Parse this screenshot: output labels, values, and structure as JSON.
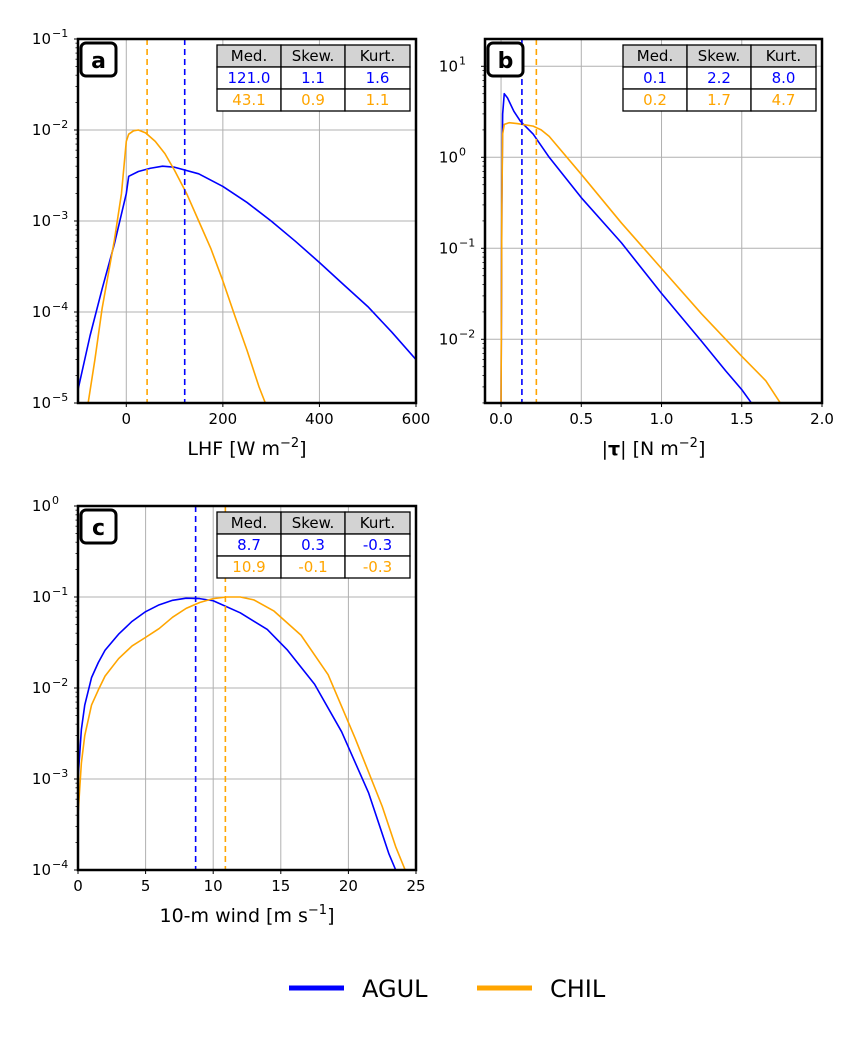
{
  "colors": {
    "agul": "#0000ff",
    "chil": "#ffa500",
    "grid": "#b0b0b0",
    "table_header_bg": "#d3d3d3"
  },
  "legend": {
    "items": [
      {
        "label": "AGUL",
        "color": "#0000ff"
      },
      {
        "label": "CHIL",
        "color": "#ffa500"
      }
    ]
  },
  "table_headers": [
    "Med.",
    "Skew.",
    "Kurt."
  ],
  "chart_data": [
    {
      "id": "a",
      "panel_label": "a",
      "type": "line",
      "xlabel": "LHF [W m$^{-2}$]",
      "xlabel_parts": {
        "main": "LHF [W m",
        "sup": "−2",
        "end": "]",
        "bold": ""
      },
      "yscale": "log",
      "xlim": [
        -100,
        600
      ],
      "ylim_exp": [
        -5,
        -1
      ],
      "xticks": [
        0,
        200,
        400,
        600
      ],
      "xtick_labels": [
        "0",
        "200",
        "400",
        "600"
      ],
      "ytick_exps": [
        -5,
        -4,
        -3,
        -2,
        -1
      ],
      "vlines": [
        {
          "series": "AGUL",
          "x": 121.0
        },
        {
          "series": "CHIL",
          "x": 43.1
        }
      ],
      "table": [
        {
          "series": "AGUL",
          "values": [
            "121.0",
            "1.1",
            "1.6"
          ]
        },
        {
          "series": "CHIL",
          "values": [
            "43.1",
            "0.9",
            "1.1"
          ]
        }
      ],
      "series": [
        {
          "name": "AGUL",
          "points": [
            [
              -100,
              1.4e-05
            ],
            [
              -75,
              5.5e-05
            ],
            [
              -50,
              0.00018
            ],
            [
              -25,
              0.00055
            ],
            [
              0,
              0.002
            ],
            [
              5,
              0.0031
            ],
            [
              25,
              0.0035
            ],
            [
              50,
              0.0038
            ],
            [
              75,
              0.004
            ],
            [
              100,
              0.0039
            ],
            [
              150,
              0.0033
            ],
            [
              200,
              0.0024
            ],
            [
              250,
              0.0016
            ],
            [
              300,
              0.001
            ],
            [
              350,
              0.0006
            ],
            [
              400,
              0.00035
            ],
            [
              450,
              0.0002
            ],
            [
              500,
              0.000115
            ],
            [
              550,
              6e-05
            ],
            [
              600,
              3e-05
            ]
          ]
        },
        {
          "name": "CHIL",
          "points": [
            [
              -79,
              1e-05
            ],
            [
              -65,
              3e-05
            ],
            [
              -50,
              0.00011
            ],
            [
              -25,
              0.0006
            ],
            [
              -10,
              0.002
            ],
            [
              0,
              0.0075
            ],
            [
              5,
              0.009
            ],
            [
              15,
              0.0098
            ],
            [
              25,
              0.01
            ],
            [
              40,
              0.0093
            ],
            [
              60,
              0.0075
            ],
            [
              80,
              0.0055
            ],
            [
              100,
              0.0036
            ],
            [
              125,
              0.002
            ],
            [
              150,
              0.001
            ],
            [
              175,
              0.0005
            ],
            [
              200,
              0.00022
            ],
            [
              225,
              9e-05
            ],
            [
              250,
              3.8e-05
            ],
            [
              275,
              1.5e-05
            ],
            [
              288,
              1e-05
            ]
          ]
        }
      ]
    },
    {
      "id": "b",
      "panel_label": "b",
      "type": "line",
      "xlabel": "|τ| [N m$^{-2}$]",
      "xlabel_parts": {
        "main": "| [N m",
        "sup": "−2",
        "end": "]",
        "bold": "τ"
      },
      "yscale": "log",
      "xlim": [
        -0.1,
        2.0
      ],
      "ylim_exp": [
        -2.7,
        1.3
      ],
      "xticks": [
        0.0,
        0.5,
        1.0,
        1.5,
        2.0
      ],
      "xtick_labels": [
        "0.0",
        "0.5",
        "1.0",
        "1.5",
        "2.0"
      ],
      "ytick_exps": [
        -2,
        -1,
        0,
        1
      ],
      "vlines": [
        {
          "series": "AGUL",
          "x": 0.13
        },
        {
          "series": "CHIL",
          "x": 0.22
        }
      ],
      "table": [
        {
          "series": "AGUL",
          "values": [
            "0.1",
            "2.2",
            "8.0"
          ]
        },
        {
          "series": "CHIL",
          "values": [
            "0.2",
            "1.7",
            "4.7"
          ]
        }
      ],
      "series": [
        {
          "name": "AGUL",
          "points": [
            [
              0.0,
              0.002
            ],
            [
              0.005,
              0.3
            ],
            [
              0.01,
              3.0
            ],
            [
              0.02,
              5.0
            ],
            [
              0.04,
              4.5
            ],
            [
              0.08,
              3.2
            ],
            [
              0.12,
              2.5
            ],
            [
              0.2,
              1.8
            ],
            [
              0.3,
              1.0
            ],
            [
              0.5,
              0.36
            ],
            [
              0.75,
              0.115
            ],
            [
              1.0,
              0.032
            ],
            [
              1.25,
              0.0095
            ],
            [
              1.4,
              0.0045
            ],
            [
              1.5,
              0.0028
            ],
            [
              1.56,
              0.002
            ]
          ]
        },
        {
          "name": "CHIL",
          "points": [
            [
              0.0,
              0.002
            ],
            [
              0.005,
              0.3
            ],
            [
              0.01,
              1.8
            ],
            [
              0.02,
              2.3
            ],
            [
              0.05,
              2.4
            ],
            [
              0.1,
              2.35
            ],
            [
              0.2,
              2.2
            ],
            [
              0.25,
              2.0
            ],
            [
              0.3,
              1.7
            ],
            [
              0.5,
              0.65
            ],
            [
              0.75,
              0.19
            ],
            [
              1.0,
              0.06
            ],
            [
              1.25,
              0.019
            ],
            [
              1.5,
              0.0065
            ],
            [
              1.65,
              0.0035
            ],
            [
              1.74,
              0.002
            ]
          ]
        }
      ]
    },
    {
      "id": "c",
      "panel_label": "c",
      "type": "line",
      "xlabel": "10-m wind [m s$^{-1}$]",
      "xlabel_parts": {
        "main": "10-m wind [m s",
        "sup": "−1",
        "end": "]",
        "bold": ""
      },
      "yscale": "log",
      "xlim": [
        0,
        25
      ],
      "ylim_exp": [
        -4,
        0
      ],
      "xticks": [
        0,
        5,
        10,
        15,
        20,
        25
      ],
      "xtick_labels": [
        "0",
        "5",
        "10",
        "15",
        "20",
        "25"
      ],
      "ytick_exps": [
        -4,
        -3,
        -2,
        -1,
        0
      ],
      "vlines": [
        {
          "series": "AGUL",
          "x": 8.7
        },
        {
          "series": "CHIL",
          "x": 10.9
        }
      ],
      "table": [
        {
          "series": "AGUL",
          "values": [
            "8.7",
            "0.3",
            "-0.3"
          ]
        },
        {
          "series": "CHIL",
          "values": [
            "10.9",
            "-0.1",
            "-0.3"
          ]
        }
      ],
      "series": [
        {
          "name": "AGUL",
          "points": [
            [
              0.0,
              0.001
            ],
            [
              0.25,
              0.0035
            ],
            [
              0.5,
              0.0065
            ],
            [
              1.0,
              0.013
            ],
            [
              1.5,
              0.019
            ],
            [
              2.0,
              0.026
            ],
            [
              3.0,
              0.039
            ],
            [
              4.0,
              0.054
            ],
            [
              5.0,
              0.069
            ],
            [
              6.0,
              0.082
            ],
            [
              7.0,
              0.092
            ],
            [
              8.0,
              0.097
            ],
            [
              9.0,
              0.096
            ],
            [
              10.0,
              0.091
            ],
            [
              12.0,
              0.067
            ],
            [
              14.0,
              0.044
            ],
            [
              15.5,
              0.026
            ],
            [
              17.5,
              0.011
            ],
            [
              19.5,
              0.0033
            ],
            [
              21.5,
              0.0007
            ],
            [
              23.0,
              0.00015
            ],
            [
              23.5,
              0.0001
            ]
          ]
        },
        {
          "name": "CHIL",
          "points": [
            [
              0.0,
              0.0004
            ],
            [
              0.25,
              0.0015
            ],
            [
              0.5,
              0.003
            ],
            [
              1.0,
              0.0065
            ],
            [
              1.5,
              0.0095
            ],
            [
              2.0,
              0.0135
            ],
            [
              3.0,
              0.021
            ],
            [
              4.0,
              0.029
            ],
            [
              5.0,
              0.036
            ],
            [
              6.0,
              0.045
            ],
            [
              7.0,
              0.06
            ],
            [
              8.0,
              0.075
            ],
            [
              9.0,
              0.087
            ],
            [
              10.0,
              0.096
            ],
            [
              11.0,
              0.1
            ],
            [
              12.0,
              0.1
            ],
            [
              13.0,
              0.093
            ],
            [
              14.5,
              0.07
            ],
            [
              16.5,
              0.038
            ],
            [
              18.5,
              0.014
            ],
            [
              20.5,
              0.0028
            ],
            [
              22.5,
              0.0005
            ],
            [
              23.5,
              0.00018
            ],
            [
              24.2,
              0.0001
            ]
          ]
        }
      ]
    }
  ]
}
